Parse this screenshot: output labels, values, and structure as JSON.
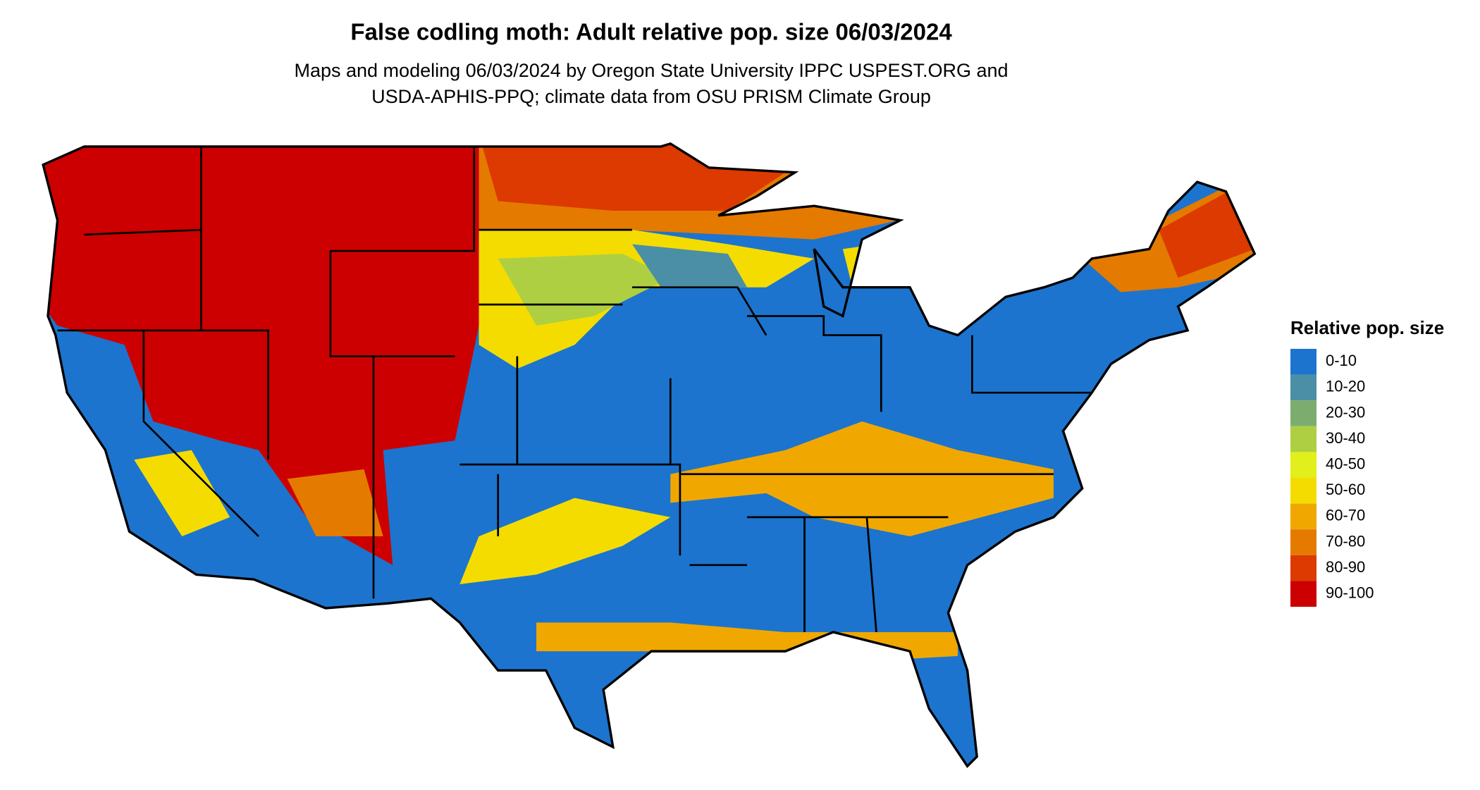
{
  "title": "False codling moth: Adult relative pop. size 06/03/2024",
  "subtitle": [
    "Maps and modeling 06/03/2024 by Oregon State University IPPC USPEST.ORG and",
    "USDA-APHIS-PPQ; climate data from OSU PRISM Climate Group"
  ],
  "legend": {
    "title": "Relative pop. size",
    "items": [
      {
        "label": "0-10",
        "color": "#1c74ce"
      },
      {
        "label": "10-20",
        "color": "#4a8fa6"
      },
      {
        "label": "20-30",
        "color": "#7dad6e"
      },
      {
        "label": "30-40",
        "color": "#aecf42"
      },
      {
        "label": "40-50",
        "color": "#e1ef1a"
      },
      {
        "label": "50-60",
        "color": "#f5dc00"
      },
      {
        "label": "60-70",
        "color": "#f0a800"
      },
      {
        "label": "70-80",
        "color": "#e47a00"
      },
      {
        "label": "80-90",
        "color": "#dc3a00"
      },
      {
        "label": "90-100",
        "color": "#cc0000"
      }
    ]
  }
}
